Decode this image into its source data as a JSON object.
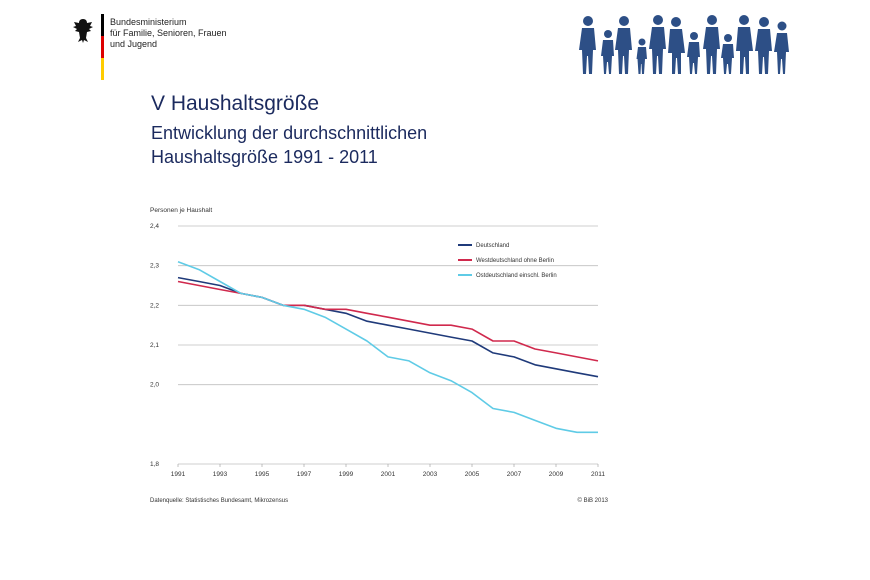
{
  "header": {
    "ministry_lines": [
      "Bundesministerium",
      "für Familie, Senioren, Frauen",
      "und Jugend"
    ],
    "flag_colors": [
      "#000000",
      "#dd0000",
      "#ffcc00"
    ],
    "logo_icon": "federal-eagle-icon",
    "family_icon": "family-silhouettes-icon"
  },
  "slide": {
    "title": "V Haushaltsgröße",
    "subtitle_lines": [
      "Entwicklung der durchschnittlichen",
      "Haushaltsgröße 1991 - 2011"
    ]
  },
  "chart_data": {
    "type": "line",
    "ylabel": "Personen je Haushalt",
    "xlabel": "",
    "x": [
      1991,
      1992,
      1993,
      1994,
      1995,
      1996,
      1997,
      1998,
      1999,
      2000,
      2001,
      2002,
      2003,
      2004,
      2005,
      2006,
      2007,
      2008,
      2009,
      2010,
      2011
    ],
    "x_ticks": [
      "1991",
      "1993",
      "1995",
      "1997",
      "1999",
      "2001",
      "2003",
      "2005",
      "2007",
      "2009",
      "2011"
    ],
    "y_ticks": [
      "1,8",
      "2,0",
      "2,1",
      "2,2",
      "2,3",
      "2,4"
    ],
    "ylim": [
      1.8,
      2.4
    ],
    "grid": true,
    "legend_position": "top-right",
    "series": [
      {
        "name": "Deutschland",
        "color": "#1f3a7a",
        "values": [
          2.27,
          2.26,
          2.25,
          2.23,
          2.22,
          2.2,
          2.2,
          2.19,
          2.18,
          2.16,
          2.15,
          2.14,
          2.13,
          2.12,
          2.11,
          2.08,
          2.07,
          2.05,
          2.04,
          2.03,
          2.02
        ]
      },
      {
        "name": "Westdeutschland ohne Berlin",
        "color": "#d0294d",
        "values": [
          2.26,
          2.25,
          2.24,
          2.23,
          2.22,
          2.2,
          2.2,
          2.19,
          2.19,
          2.18,
          2.17,
          2.16,
          2.15,
          2.15,
          2.14,
          2.11,
          2.11,
          2.09,
          2.08,
          2.07,
          2.06
        ]
      },
      {
        "name": "Ostdeutschland einschl. Berlin",
        "color": "#5fcbe6",
        "values": [
          2.31,
          2.29,
          2.26,
          2.23,
          2.22,
          2.2,
          2.19,
          2.17,
          2.14,
          2.11,
          2.07,
          2.06,
          2.03,
          2.01,
          1.98,
          1.94,
          1.93,
          1.91,
          1.89,
          1.88,
          1.88
        ]
      }
    ],
    "source": "Datenquelle: Statistisches Bundesamt, Mikrozensus",
    "copyright": "© BiB 2013"
  }
}
